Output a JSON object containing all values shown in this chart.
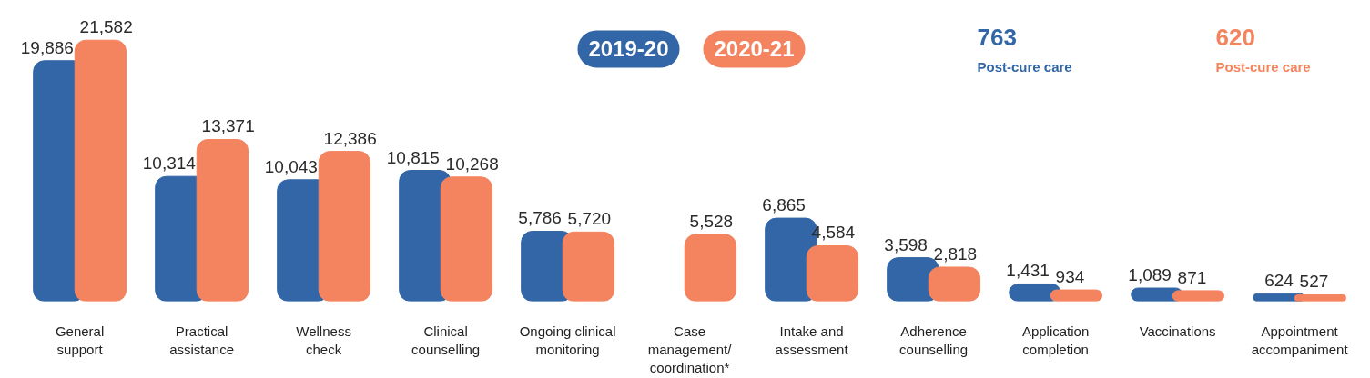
{
  "chart_data": {
    "type": "bar",
    "categories": [
      "General\nsupport",
      "Practical\nassistance",
      "Wellness\ncheck",
      "Clinical\ncounselling",
      "Ongoing clinical\nmonitoring",
      "Case\nmanagement/\ncoordination*",
      "Intake and\nassessment",
      "Adherence\ncounselling",
      "Application\ncompletion",
      "Vaccinations",
      "Appointment\naccompaniment"
    ],
    "series": [
      {
        "name": "2019-20",
        "color": "#3366a6",
        "values": [
          19886,
          10314,
          10043,
          10815,
          5786,
          null,
          6865,
          3598,
          1431,
          1089,
          624
        ],
        "value_labels": [
          "19,886",
          "10,314",
          "10,043",
          "10,815",
          "5,786",
          null,
          "6,865",
          "3,598",
          "1,431",
          "1,089",
          "624"
        ]
      },
      {
        "name": "2020-21",
        "color": "#f4845f",
        "values": [
          21582,
          13371,
          12386,
          10268,
          5720,
          5528,
          4584,
          2818,
          934,
          871,
          527
        ],
        "value_labels": [
          "21,582",
          "13,371",
          "12,386",
          "10,268",
          "5,720",
          "5,528",
          "4,584",
          "2,818",
          "934",
          "871",
          "527"
        ]
      }
    ],
    "legend": "top",
    "annotations": [
      "763\nPost-cure care",
      "620\nPost-cure care"
    ]
  }
}
